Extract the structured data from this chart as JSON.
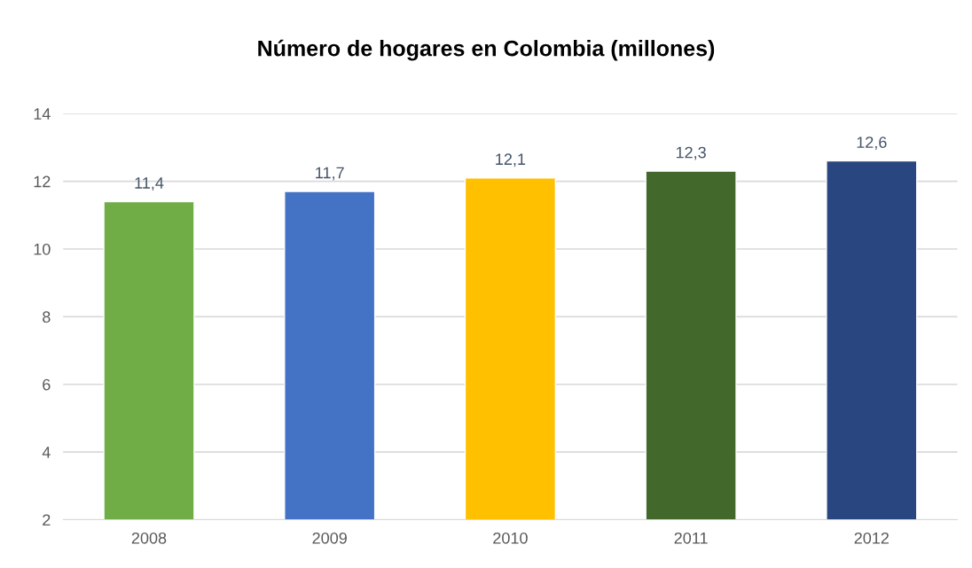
{
  "chart_data": {
    "type": "bar",
    "title": "Número de hogares en Colombia (millones)",
    "categories": [
      "2008",
      "2009",
      "2010",
      "2011",
      "2012"
    ],
    "values": [
      11.4,
      11.7,
      12.1,
      12.3,
      12.6
    ],
    "colors": [
      "#70ad47",
      "#4472c4",
      "#ffc000",
      "#43682b",
      "#2a4680"
    ],
    "value_labels": [
      "11,4",
      "11,7",
      "12,1",
      "12,3",
      "12,6"
    ],
    "ylim": [
      2,
      14
    ],
    "yticks": [
      2,
      4,
      6,
      8,
      10,
      12,
      14
    ],
    "grid": "y"
  }
}
